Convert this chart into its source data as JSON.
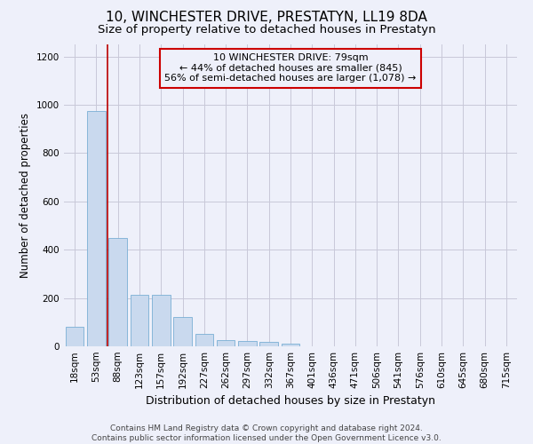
{
  "title": "10, WINCHESTER DRIVE, PRESTATYN, LL19 8DA",
  "subtitle": "Size of property relative to detached houses in Prestatyn",
  "xlabel": "Distribution of detached houses by size in Prestatyn",
  "ylabel": "Number of detached properties",
  "categories": [
    "18sqm",
    "53sqm",
    "88sqm",
    "123sqm",
    "157sqm",
    "192sqm",
    "227sqm",
    "262sqm",
    "297sqm",
    "332sqm",
    "367sqm",
    "401sqm",
    "436sqm",
    "471sqm",
    "506sqm",
    "541sqm",
    "576sqm",
    "610sqm",
    "645sqm",
    "680sqm",
    "715sqm"
  ],
  "values": [
    80,
    975,
    450,
    215,
    215,
    120,
    50,
    25,
    22,
    20,
    12,
    0,
    0,
    0,
    0,
    0,
    0,
    0,
    0,
    0,
    0
  ],
  "bar_color": "#c9d9ee",
  "bar_edgecolor": "#7aafd4",
  "bar_linewidth": 0.6,
  "grid_color": "#c8c8d8",
  "background_color": "#eef0fa",
  "vline_x_index": 2,
  "vline_color": "#bb0000",
  "ylim": [
    0,
    1250
  ],
  "yticks": [
    0,
    200,
    400,
    600,
    800,
    1000,
    1200
  ],
  "annotation_text": "10 WINCHESTER DRIVE: 79sqm\n← 44% of detached houses are smaller (845)\n56% of semi-detached houses are larger (1,078) →",
  "annotation_box_color": "#cc0000",
  "footer": "Contains HM Land Registry data © Crown copyright and database right 2024.\nContains public sector information licensed under the Open Government Licence v3.0.",
  "title_fontsize": 11,
  "subtitle_fontsize": 9.5,
  "xlabel_fontsize": 9,
  "ylabel_fontsize": 8.5,
  "annotation_fontsize": 8,
  "footer_fontsize": 6.5,
  "tick_fontsize": 7.5
}
